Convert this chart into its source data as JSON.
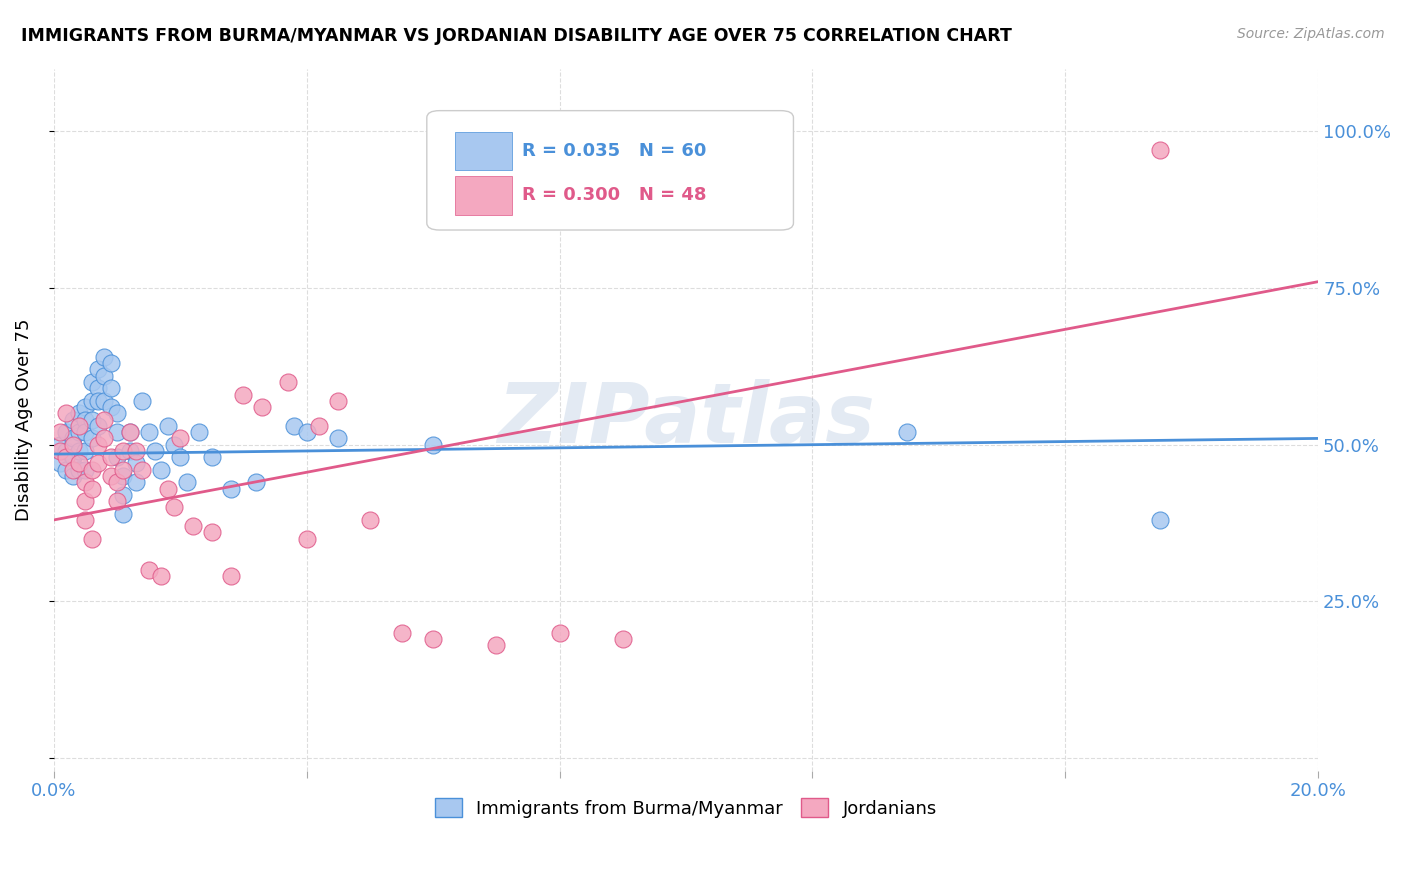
{
  "title": "IMMIGRANTS FROM BURMA/MYANMAR VS JORDANIAN DISABILITY AGE OVER 75 CORRELATION CHART",
  "source": "Source: ZipAtlas.com",
  "ylabel": "Disability Age Over 75",
  "xlim": [
    0.0,
    0.2
  ],
  "ylim": [
    -0.02,
    1.1
  ],
  "blue_R": 0.035,
  "blue_N": 60,
  "pink_R": 0.3,
  "pink_N": 48,
  "blue_color": "#A8C8F0",
  "pink_color": "#F4A8C0",
  "blue_line_color": "#4A90D9",
  "pink_line_color": "#E05A8A",
  "watermark": "ZIPatlas",
  "blue_scatter_x": [
    0.001,
    0.001,
    0.002,
    0.002,
    0.002,
    0.003,
    0.003,
    0.003,
    0.003,
    0.004,
    0.004,
    0.004,
    0.004,
    0.005,
    0.005,
    0.005,
    0.005,
    0.005,
    0.006,
    0.006,
    0.006,
    0.006,
    0.007,
    0.007,
    0.007,
    0.007,
    0.008,
    0.008,
    0.008,
    0.009,
    0.009,
    0.009,
    0.01,
    0.01,
    0.01,
    0.011,
    0.011,
    0.011,
    0.012,
    0.012,
    0.013,
    0.013,
    0.014,
    0.015,
    0.016,
    0.017,
    0.018,
    0.019,
    0.02,
    0.021,
    0.023,
    0.025,
    0.028,
    0.032,
    0.038,
    0.04,
    0.045,
    0.06,
    0.135,
    0.175
  ],
  "blue_scatter_y": [
    0.5,
    0.47,
    0.52,
    0.49,
    0.46,
    0.54,
    0.51,
    0.48,
    0.45,
    0.55,
    0.52,
    0.49,
    0.46,
    0.56,
    0.54,
    0.52,
    0.49,
    0.46,
    0.6,
    0.57,
    0.54,
    0.51,
    0.62,
    0.59,
    0.57,
    0.53,
    0.64,
    0.61,
    0.57,
    0.63,
    0.59,
    0.56,
    0.55,
    0.52,
    0.48,
    0.45,
    0.42,
    0.39,
    0.52,
    0.49,
    0.47,
    0.44,
    0.57,
    0.52,
    0.49,
    0.46,
    0.53,
    0.5,
    0.48,
    0.44,
    0.52,
    0.48,
    0.43,
    0.44,
    0.53,
    0.52,
    0.51,
    0.5,
    0.52,
    0.38
  ],
  "pink_scatter_x": [
    0.001,
    0.001,
    0.002,
    0.002,
    0.003,
    0.003,
    0.004,
    0.004,
    0.005,
    0.005,
    0.005,
    0.006,
    0.006,
    0.006,
    0.007,
    0.007,
    0.008,
    0.008,
    0.009,
    0.009,
    0.01,
    0.01,
    0.011,
    0.011,
    0.012,
    0.013,
    0.014,
    0.015,
    0.017,
    0.018,
    0.019,
    0.02,
    0.022,
    0.025,
    0.028,
    0.03,
    0.033,
    0.037,
    0.04,
    0.042,
    0.045,
    0.05,
    0.055,
    0.06,
    0.07,
    0.08,
    0.09,
    0.175
  ],
  "pink_scatter_y": [
    0.52,
    0.49,
    0.55,
    0.48,
    0.5,
    0.46,
    0.53,
    0.47,
    0.44,
    0.41,
    0.38,
    0.35,
    0.46,
    0.43,
    0.5,
    0.47,
    0.54,
    0.51,
    0.48,
    0.45,
    0.44,
    0.41,
    0.49,
    0.46,
    0.52,
    0.49,
    0.46,
    0.3,
    0.29,
    0.43,
    0.4,
    0.51,
    0.37,
    0.36,
    0.29,
    0.58,
    0.56,
    0.6,
    0.35,
    0.53,
    0.57,
    0.38,
    0.2,
    0.19,
    0.18,
    0.2,
    0.19,
    0.97
  ],
  "legend_label_blue": "Immigrants from Burma/Myanmar",
  "legend_label_pink": "Jordanians"
}
